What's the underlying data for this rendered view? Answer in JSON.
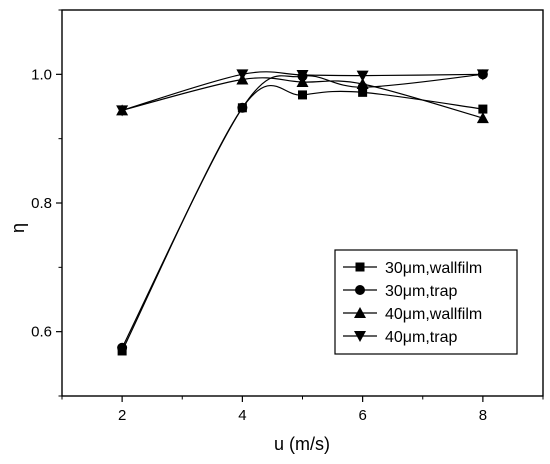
{
  "chart_data": {
    "type": "line",
    "title": "",
    "xlabel": "u (m/s)",
    "ylabel": "η",
    "xlim": [
      1,
      9
    ],
    "ylim": [
      0.5,
      1.1
    ],
    "xticks": [
      2,
      4,
      6,
      8
    ],
    "yticks": [
      0.6,
      0.8,
      1.0
    ],
    "xtick_labels": [
      "2",
      "4",
      "6",
      "8"
    ],
    "ytick_labels": [
      "0.6",
      "0.8",
      "1.0"
    ],
    "grid": false,
    "legend_position": "lower-right",
    "x": [
      2,
      4,
      5,
      6,
      8
    ],
    "series": [
      {
        "name": "30μm,wallfilm",
        "marker": "square",
        "values": [
          0.57,
          0.948,
          0.968,
          0.972,
          0.946
        ]
      },
      {
        "name": "30μm,trap",
        "marker": "circle",
        "values": [
          0.575,
          0.948,
          0.997,
          0.98,
          1.0
        ]
      },
      {
        "name": "40μm,wallfilm",
        "marker": "triangle-up",
        "values": [
          0.944,
          0.992,
          0.988,
          0.985,
          0.932
        ]
      },
      {
        "name": "40μm,trap",
        "marker": "triangle-down",
        "values": [
          0.944,
          1.0,
          0.999,
          0.998,
          1.0
        ]
      }
    ]
  }
}
